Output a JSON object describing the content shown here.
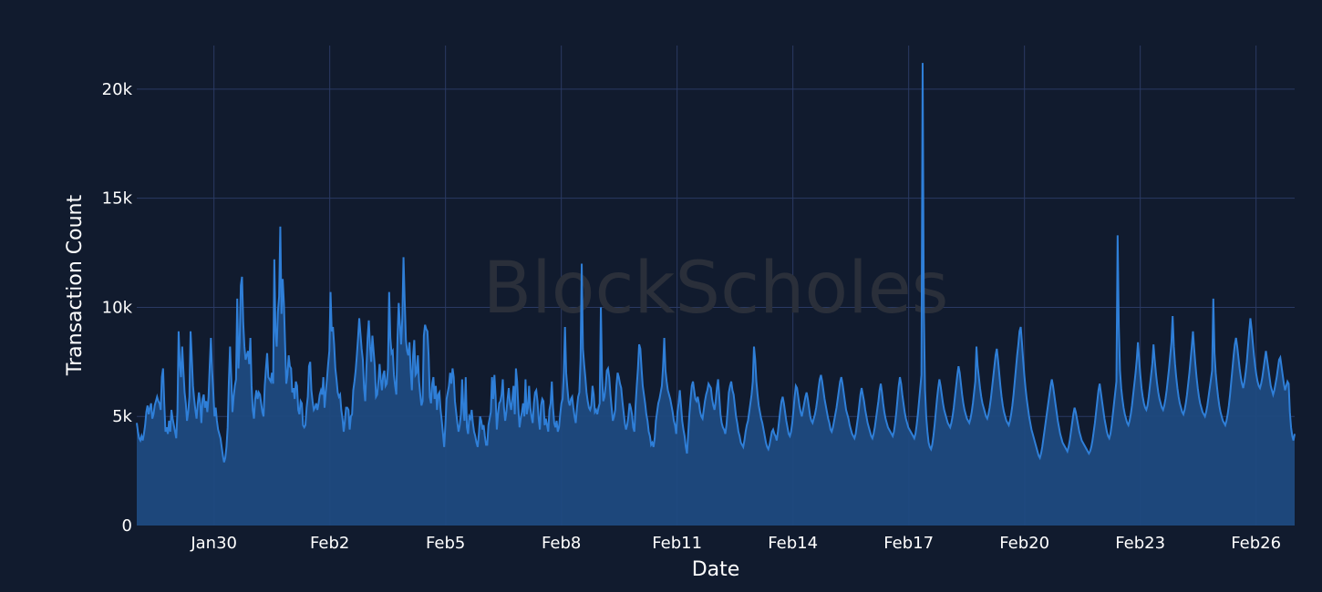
{
  "chart_data": {
    "type": "area",
    "xlabel": "Date",
    "ylabel": "Transaction Count",
    "watermark": "BlockScholes",
    "x_start": "2024-01-28T00:00",
    "x_end": "2024-02-27T00:00",
    "xlim": [
      "2024-01-28T00:00",
      "2024-02-27T00:00"
    ],
    "ylim": [
      0,
      22000
    ],
    "x_tick_labels": [
      "Jan30",
      "Feb2",
      "Feb5",
      "Feb8",
      "Feb11",
      "Feb14",
      "Feb17",
      "Feb20",
      "Feb23",
      "Feb26"
    ],
    "x_tick_dates": [
      "2024-01-30",
      "2024-02-02",
      "2024-02-05",
      "2024-02-08",
      "2024-02-11",
      "2024-02-14",
      "2024-02-17",
      "2024-02-20",
      "2024-02-23",
      "2024-02-26"
    ],
    "y_ticks": [
      0,
      5000,
      10000,
      15000,
      20000
    ],
    "y_tick_labels": [
      "0",
      "5k",
      "10k",
      "15k",
      "20k"
    ],
    "grid": true,
    "colors": {
      "background": "#111b2e",
      "line": "#2f7fd8",
      "fill": "#1f4a80",
      "grid": "#2a3a63"
    },
    "series": [
      {
        "sampling": "hourly",
        "values": [
          4700,
          4300,
          4000,
          3900,
          4100,
          3900,
          4200,
          4600,
          5200,
          5500,
          5100,
          5400,
          5600,
          4900,
          5100,
          5500,
          5700,
          5900,
          5700,
          5600,
          5300,
          6800,
          7200,
          5600,
          4300,
          4500,
          4200,
          4800,
          4300,
          5300,
          4900,
          4600,
          4300,
          4000,
          5200,
          8900,
          7400,
          6800,
          8200,
          7100,
          6100,
          5600,
          4800,
          5200,
          5900,
          8900,
          7700,
          6400,
          5800,
          5300,
          4900,
          5600,
          6100,
          5600,
          4700,
          5800,
          6000,
          5400,
          5700,
          5200,
          5900,
          7300,
          8600,
          7100,
          6100,
          5000,
          5400,
          4800,
          4400,
          4200,
          4000,
          3600,
          3200,
          2900,
          3100,
          3600,
          4500,
          6600,
          8200,
          6800,
          5200,
          5900,
          6400,
          6700,
          10400,
          7200,
          8400,
          11000,
          11400,
          9300,
          8200,
          7600,
          7800,
          8000,
          7400,
          8600,
          6400,
          5300,
          4900,
          5800,
          6200,
          5800,
          6100,
          6000,
          5600,
          5200,
          5000,
          6400,
          7200,
          7900,
          6800,
          6700,
          6600,
          7000,
          6500,
          12200,
          8900,
          8200,
          9800,
          10500,
          13700,
          9700,
          11300,
          10200,
          8300,
          6500,
          6900,
          7800,
          7300,
          7200,
          6100,
          6300,
          5800,
          6600,
          6400,
          5300,
          5100,
          5700,
          5600,
          4600,
          4500,
          4600,
          5400,
          5900,
          7300,
          7500,
          6200,
          5700,
          5300,
          5400,
          5600,
          5300,
          5600,
          6000,
          6200,
          6000,
          6800,
          5400,
          6100,
          6700,
          7400,
          8000,
          10700,
          8900,
          9100,
          8300,
          7200,
          6700,
          6100,
          5900,
          6000,
          5300,
          4900,
          4300,
          4800,
          5400,
          5400,
          5300,
          4400,
          5000,
          5100,
          6200,
          6600,
          7100,
          7800,
          8600,
          9500,
          8800,
          8100,
          7600,
          6300,
          5700,
          7200,
          8600,
          9400,
          8200,
          7500,
          8700,
          8000,
          7300,
          5900,
          6000,
          6600,
          7400,
          6700,
          6200,
          6900,
          7100,
          6400,
          6500,
          7200,
          10700,
          8600,
          7900,
          8000,
          6900,
          6400,
          6000,
          8600,
          10200,
          9200,
          8300,
          9500,
          12300,
          10300,
          8500,
          8000,
          7800,
          8400,
          7100,
          6200,
          7800,
          8500,
          6900,
          7000,
          7800,
          6600,
          6000,
          5500,
          5700,
          8700,
          9200,
          9000,
          8900,
          7800,
          5900,
          5600,
          6500,
          6800,
          5800,
          6400,
          5300,
          6000,
          6100,
          5300,
          4800,
          4200,
          3600,
          4600,
          5800,
          6100,
          6400,
          7000,
          6500,
          7200,
          6800,
          5700,
          5200,
          4700,
          4300,
          4600,
          5100,
          6700,
          5400,
          4800,
          6800,
          4500,
          4200,
          5000,
          4900,
          5300,
          4700,
          4300,
          4100,
          3800,
          3600,
          4200,
          5000,
          4800,
          4400,
          4600,
          4100,
          3700,
          3700,
          4600,
          4900,
          5200,
          6800,
          5800,
          6900,
          5900,
          4400,
          5100,
          5600,
          5700,
          6000,
          6700,
          5400,
          4800,
          5200,
          5800,
          6300,
          5600,
          5300,
          5800,
          6400,
          5100,
          7200,
          6600,
          5400,
          4500,
          4900,
          5200,
          5600,
          5000,
          6700,
          5100,
          5400,
          6400,
          5400,
          5000,
          4700,
          5600,
          6100,
          6200,
          5700,
          4900,
          4400,
          5500,
          5800,
          5700,
          4600,
          4900,
          4600,
          4300,
          5300,
          5600,
          6600,
          5400,
          4700,
          4500,
          4800,
          4300,
          4500,
          5100,
          5600,
          5800,
          7000,
          9100,
          7000,
          6300,
          5700,
          5500,
          5800,
          5900,
          5400,
          5000,
          4700,
          5400,
          5900,
          6100,
          7600,
          12000,
          8100,
          7400,
          6800,
          6100,
          5700,
          5400,
          5300,
          5500,
          6400,
          6000,
          5200,
          5300,
          5100,
          5400,
          5600,
          10000,
          6800,
          5700,
          5900,
          6400,
          7100,
          7200,
          6800,
          6000,
          5400,
          4800,
          5000,
          5300,
          6400,
          7000,
          6800,
          6500,
          6300,
          5700,
          5200,
          4700,
          4400,
          4600,
          5000,
          5600,
          5400,
          5100,
          4500,
          4300,
          5500,
          6400,
          7200,
          8300,
          8100,
          7200,
          6400,
          6000,
          5600,
          5100,
          4800,
          4300,
          4100,
          3700,
          3800,
          3600,
          4000,
          4800,
          5200,
          5600,
          5800,
          6100,
          6400,
          7300,
          8600,
          7100,
          6600,
          6200,
          6000,
          5800,
          5500,
          5200,
          4800,
          4600,
          4200,
          5200,
          5600,
          6200,
          5500,
          4800,
          4400,
          4100,
          3600,
          3300,
          4200,
          5100,
          5800,
          6400,
          6600,
          6200,
          5800,
          5700,
          5900,
          5600,
          5200,
          5000,
          4900,
          5300,
          5700,
          6000,
          6200,
          6500,
          6400,
          6300,
          5800,
          5500,
          5300,
          5700,
          6300,
          6700,
          5900,
          5100,
          4700,
          4500,
          4400,
          4200,
          4600,
          5300,
          6100,
          6400,
          6600,
          6200,
          6000,
          5500,
          5000,
          4700,
          4300,
          4100,
          3800,
          3700,
          3600,
          3900,
          4300,
          4600,
          4800,
          5200,
          5600,
          6000,
          6600,
          8200,
          7600,
          6600,
          6000,
          5500,
          5200,
          4900,
          4700,
          4400,
          4100,
          3800,
          3600,
          3500,
          3700,
          4000,
          4300,
          4400,
          4200,
          4100,
          3900,
          4300,
          4800,
          5300,
          5700,
          5900,
          5600,
          5200,
          4800,
          4500,
          4200,
          4100,
          4300,
          4700,
          5300,
          5900,
          6400,
          6300,
          5900,
          5500,
          5200,
          5000,
          5300,
          5600,
          5900,
          6100,
          5800,
          5400,
          5000,
          4800,
          4700,
          4900,
          5100,
          5400,
          5800,
          6300,
          6700,
          6900,
          6600,
          6200,
          5800,
          5500,
          5200,
          4900,
          4700,
          4400,
          4300,
          4500,
          4800,
          5100,
          5400,
          5800,
          6200,
          6600,
          6800,
          6500,
          6100,
          5700,
          5300,
          5100,
          4900,
          4600,
          4400,
          4200,
          4100,
          4000,
          4200,
          4600,
          5000,
          5500,
          6000,
          6300,
          6000,
          5700,
          5300,
          5000,
          4700,
          4500,
          4300,
          4100,
          4000,
          4200,
          4500,
          4900,
          5300,
          5700,
          6200,
          6500,
          6100,
          5600,
          5200,
          4900,
          4700,
          4500,
          4400,
          4300,
          4200,
          4100,
          4300,
          4700,
          5200,
          5800,
          6400,
          6800,
          6500,
          6000,
          5600,
          5200,
          4900,
          4700,
          4500,
          4400,
          4300,
          4200,
          4100,
          4000,
          4200,
          4600,
          5100,
          5700,
          6300,
          6900,
          21200,
          9800,
          6200,
          5000,
          4300,
          3800,
          3600,
          3500,
          3700,
          4100,
          4600,
          5200,
          5800,
          6300,
          6700,
          6400,
          6000,
          5600,
          5300,
          5100,
          4900,
          4700,
          4600,
          4500,
          4700,
          5000,
          5400,
          5900,
          6400,
          6900,
          7300,
          7000,
          6500,
          6000,
          5600,
          5300,
          5100,
          4900,
          4800,
          4700,
          4900,
          5200,
          5600,
          6100,
          6600,
          8200,
          7300,
          6800,
          6300,
          5900,
          5600,
          5400,
          5200,
          5000,
          4900,
          5100,
          5400,
          5800,
          6300,
          6800,
          7300,
          7800,
          8100,
          7600,
          7000,
          6400,
          5900,
          5500,
          5200,
          5000,
          4800,
          4700,
          4600,
          4800,
          5100,
          5500,
          6000,
          6600,
          7200,
          7800,
          8300,
          8900,
          9100,
          8400,
          7600,
          6900,
          6300,
          5800,
          5400,
          5000,
          4700,
          4400,
          4200,
          4000,
          3800,
          3600,
          3400,
          3200,
          3100,
          3300,
          3600,
          4000,
          4400,
          4800,
          5200,
          5600,
          6000,
          6400,
          6700,
          6400,
          6000,
          5600,
          5200,
          4800,
          4500,
          4200,
          4000,
          3800,
          3700,
          3600,
          3500,
          3400,
          3600,
          3900,
          4300,
          4700,
          5100,
          5400,
          5200,
          4900,
          4600,
          4300,
          4100,
          3900,
          3800,
          3700,
          3600,
          3500,
          3400,
          3300,
          3400,
          3600,
          3900,
          4300,
          4700,
          5200,
          5700,
          6200,
          6500,
          6100,
          5700,
          5300,
          4900,
          4600,
          4300,
          4100,
          4000,
          4200,
          4600,
          5100,
          5600,
          6100,
          6600,
          13300,
          9100,
          7100,
          6300,
          5800,
          5400,
          5100,
          4900,
          4700,
          4600,
          4800,
          5100,
          5500,
          6000,
          6500,
          7000,
          7600,
          8400,
          7600,
          6900,
          6300,
          5900,
          5600,
          5400,
          5300,
          5500,
          5900,
          6400,
          6900,
          7400,
          8300,
          7600,
          7000,
          6500,
          6100,
          5800,
          5600,
          5400,
          5300,
          5500,
          5800,
          6200,
          6700,
          7200,
          7800,
          8400,
          9600,
          8200,
          7400,
          6800,
          6300,
          5900,
          5600,
          5400,
          5200,
          5100,
          5300,
          5600,
          6000,
          6500,
          7000,
          7600,
          8200,
          8900,
          8100,
          7400,
          6800,
          6300,
          5900,
          5600,
          5400,
          5200,
          5100,
          5000,
          5200,
          5500,
          5900,
          6300,
          6700,
          7100,
          10400,
          7900,
          7000,
          6400,
          5900,
          5500,
          5200,
          5000,
          4800,
          4700,
          4600,
          4800,
          5100,
          5500,
          6000,
          6600,
          7200,
          7800,
          8300,
          8600,
          8200,
          7700,
          7200,
          6800,
          6500,
          6300,
          6600,
          7000,
          7500,
          8200,
          8900,
          9500,
          9000,
          8400,
          7800,
          7300,
          6900,
          6600,
          6400,
          6300,
          6500,
          6800,
          7200,
          7600,
          8000,
          7600,
          7200,
          6800,
          6400,
          6200,
          6000,
          6200,
          6500,
          6800,
          7200,
          7600,
          7700,
          7300,
          6900,
          6500,
          6200,
          6400,
          6600,
          6500,
          5200,
          4500,
          4100,
          3900,
          4200
        ]
      }
    ]
  }
}
